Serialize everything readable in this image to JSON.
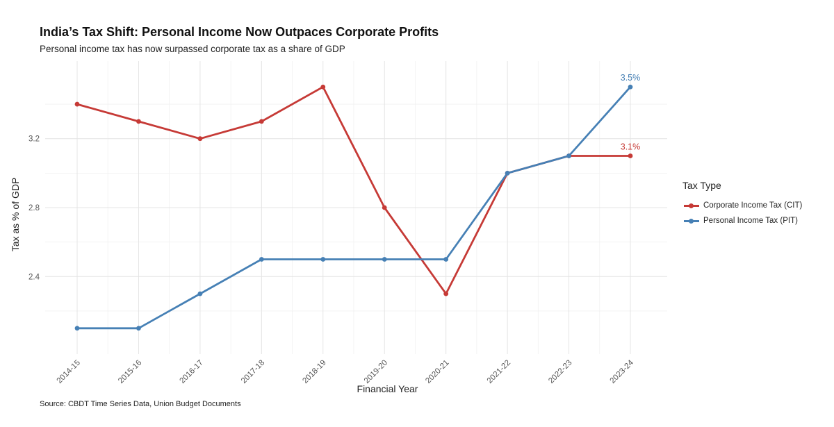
{
  "chart_data": {
    "type": "line",
    "title": "India’s Tax Shift: Personal Income Now Outpaces Corporate Profits",
    "subtitle": "Personal income tax has now surpassed corporate tax as a share of GDP",
    "caption": "Source: CBDT Time Series Data, Union Budget Documents",
    "xlabel": "Financial Year",
    "ylabel": "Tax as % of GDP",
    "categories": [
      "2014-15",
      "2015-16",
      "2016-17",
      "2017-18",
      "2018-19",
      "2019-20",
      "2020-21",
      "2021-22",
      "2022-23",
      "2023-24"
    ],
    "ylim": [
      1.95,
      3.65
    ],
    "yticks": [
      2.4,
      2.8,
      3.2
    ],
    "ytick_labels": [
      "2.4",
      "2.8",
      "3.2"
    ],
    "grid": true,
    "legend_title": "Tax Type",
    "legend_position": "right",
    "series": [
      {
        "name": "Corporate Income Tax (CIT)",
        "color": "#c63a36",
        "values": [
          3.4,
          3.3,
          3.2,
          3.3,
          3.5,
          2.8,
          2.3,
          3.0,
          3.1,
          3.1
        ],
        "end_label": "3.1%"
      },
      {
        "name": "Personal Income Tax (PIT)",
        "color": "#4680b5",
        "values": [
          2.1,
          2.1,
          2.3,
          2.5,
          2.5,
          2.5,
          2.5,
          3.0,
          3.1,
          3.5
        ],
        "end_label": "3.5%"
      }
    ]
  }
}
